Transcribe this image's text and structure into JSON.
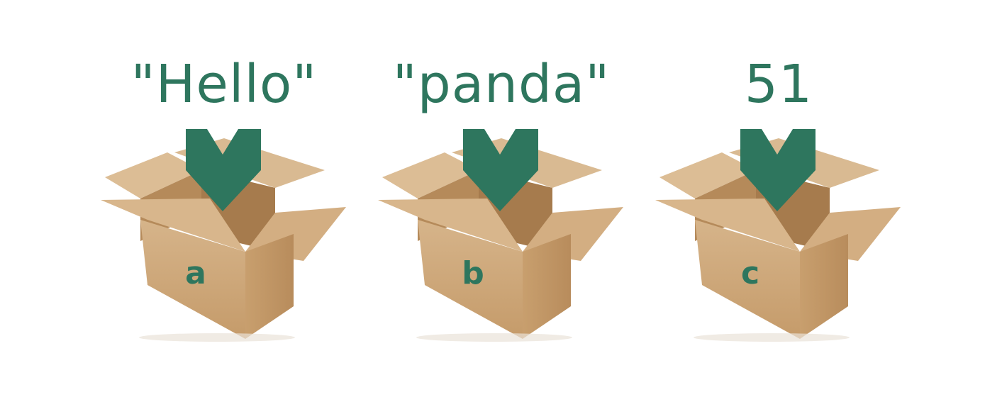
{
  "accent_color": "#2e765e",
  "box_color": "#cfa877",
  "variables": [
    {
      "value": "\"Hello\"",
      "name": "a"
    },
    {
      "value": "\"panda\"",
      "name": "b"
    },
    {
      "value": "51",
      "name": "c"
    }
  ]
}
